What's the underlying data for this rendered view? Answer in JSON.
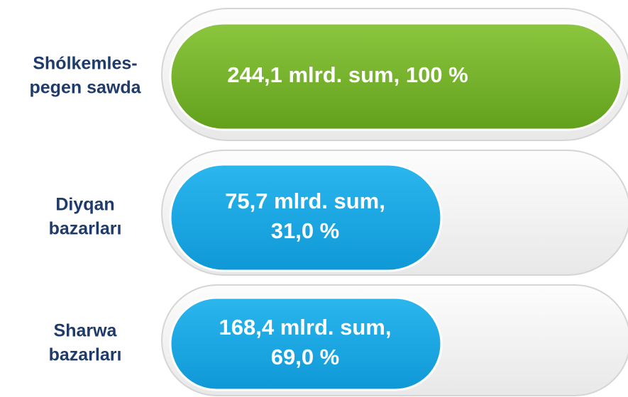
{
  "rows": [
    {
      "label": [
        "Shólkemles-",
        "pegen sawda"
      ],
      "text": [
        "244,1 mlrd. sum, 100 %"
      ]
    },
    {
      "label": [
        "Diyqan",
        "bazarları"
      ],
      "text": [
        "75,7 mlrd. sum,",
        "31,0 %"
      ]
    },
    {
      "label": [
        "Sharwa",
        "bazarları"
      ],
      "text": [
        "168,4 mlrd. sum,",
        "69,0 %"
      ]
    }
  ]
}
